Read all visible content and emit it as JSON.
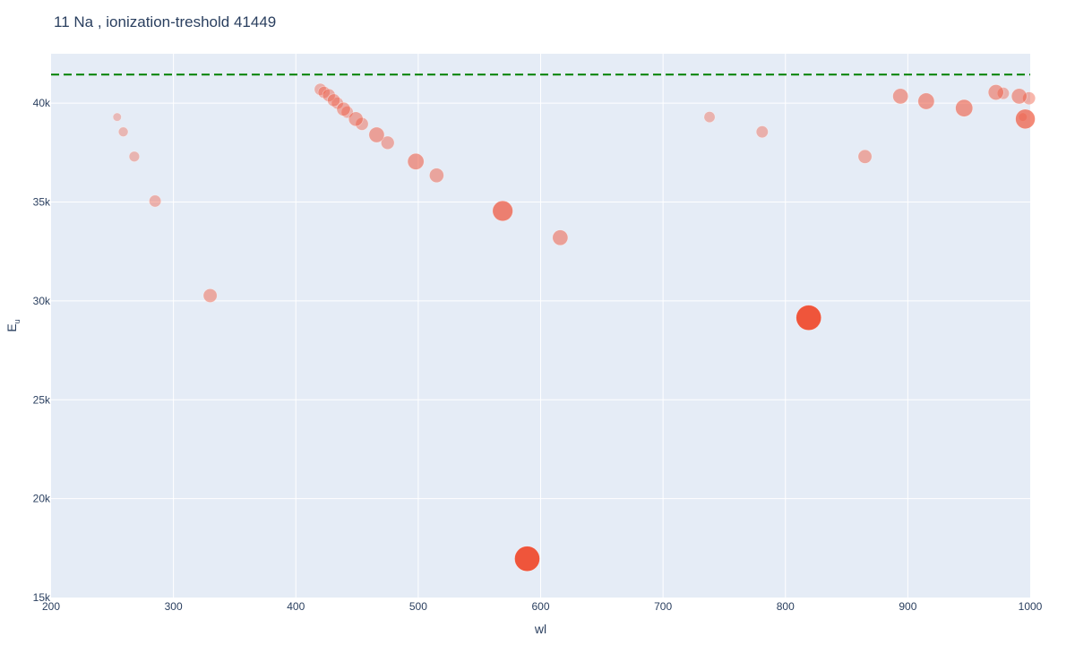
{
  "chart_data": {
    "type": "scatter",
    "title": "11 Na , ionization-treshold 41449",
    "xlabel": "wl",
    "ylabel": "E",
    "ylabel_subscript": "u",
    "xlim": [
      200,
      1000
    ],
    "ylim": [
      15000,
      42500
    ],
    "x_ticks": [
      200,
      300,
      400,
      500,
      600,
      700,
      800,
      900,
      1000
    ],
    "x_tick_labels": [
      "200",
      "300",
      "400",
      "500",
      "600",
      "700",
      "800",
      "900",
      "1000"
    ],
    "y_ticks": [
      15000,
      20000,
      25000,
      30000,
      35000,
      40000
    ],
    "y_tick_labels": [
      "15k",
      "20k",
      "25k",
      "30k",
      "35k",
      "40k"
    ],
    "threshold": 41449,
    "grid": true,
    "colors": {
      "plot_bg": "#e5ecf6",
      "grid": "#ffffff",
      "marker": "#ef553b",
      "threshold_line": "#008000",
      "text": "#2a3f5f"
    },
    "points": [
      {
        "x": 254,
        "y": 39300,
        "s": 0.05
      },
      {
        "x": 259,
        "y": 38550,
        "s": 0.08
      },
      {
        "x": 268,
        "y": 37300,
        "s": 0.1
      },
      {
        "x": 285,
        "y": 35050,
        "s": 0.15
      },
      {
        "x": 330,
        "y": 30270,
        "s": 0.22
      },
      {
        "x": 420,
        "y": 40700,
        "s": 0.15
      },
      {
        "x": 423,
        "y": 40550,
        "s": 0.15
      },
      {
        "x": 427,
        "y": 40400,
        "s": 0.18
      },
      {
        "x": 431,
        "y": 40150,
        "s": 0.18
      },
      {
        "x": 434,
        "y": 40000,
        "s": 0.15
      },
      {
        "x": 439,
        "y": 39700,
        "s": 0.22
      },
      {
        "x": 442,
        "y": 39550,
        "s": 0.15
      },
      {
        "x": 449,
        "y": 39200,
        "s": 0.25
      },
      {
        "x": 454,
        "y": 38950,
        "s": 0.18
      },
      {
        "x": 466,
        "y": 38400,
        "s": 0.3
      },
      {
        "x": 475,
        "y": 38000,
        "s": 0.2
      },
      {
        "x": 498,
        "y": 37050,
        "s": 0.35
      },
      {
        "x": 515,
        "y": 36350,
        "s": 0.25
      },
      {
        "x": 569,
        "y": 34550,
        "s": 0.6
      },
      {
        "x": 616,
        "y": 33200,
        "s": 0.3
      },
      {
        "x": 589,
        "y": 16960,
        "s": 1.0
      },
      {
        "x": 590,
        "y": 16960,
        "s": 0.7
      },
      {
        "x": 738,
        "y": 39300,
        "s": 0.12
      },
      {
        "x": 781,
        "y": 38550,
        "s": 0.15
      },
      {
        "x": 819,
        "y": 29150,
        "s": 1.0
      },
      {
        "x": 865,
        "y": 37300,
        "s": 0.22
      },
      {
        "x": 894,
        "y": 40350,
        "s": 0.3
      },
      {
        "x": 915,
        "y": 40100,
        "s": 0.35
      },
      {
        "x": 946,
        "y": 39750,
        "s": 0.4
      },
      {
        "x": 972,
        "y": 40550,
        "s": 0.3
      },
      {
        "x": 978,
        "y": 40500,
        "s": 0.15
      },
      {
        "x": 991,
        "y": 40350,
        "s": 0.3
      },
      {
        "x": 994,
        "y": 39300,
        "s": 0.05
      },
      {
        "x": 996,
        "y": 39200,
        "s": 0.55
      },
      {
        "x": 999,
        "y": 40250,
        "s": 0.18
      }
    ]
  }
}
